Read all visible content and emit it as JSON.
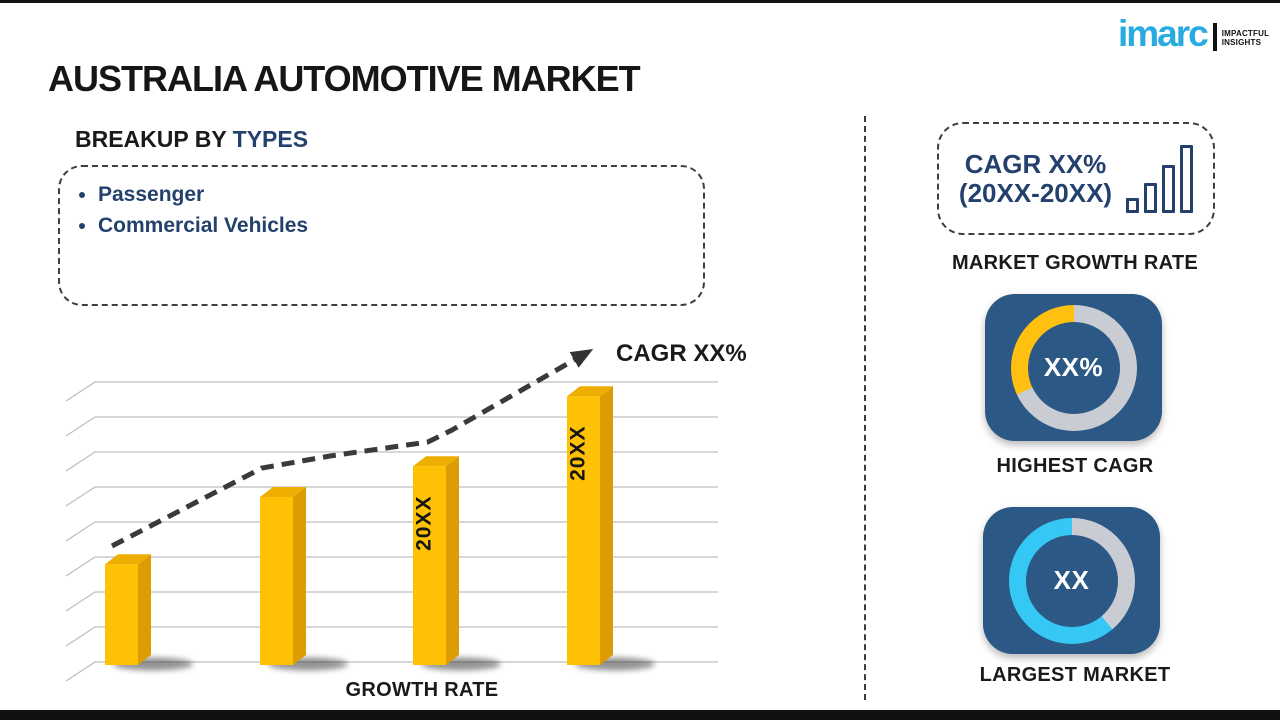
{
  "page": {
    "title": "AUSTRALIA AUTOMOTIVE MARKET"
  },
  "logo": {
    "brand": "imarc",
    "tagline_line1": "IMPACTFUL",
    "tagline_line2": "INSIGHTS",
    "brand_color": "#29ABE2"
  },
  "breakup": {
    "heading_prefix": "BREAKUP BY ",
    "heading_highlight": "TYPES",
    "items": [
      {
        "label": "Passenger"
      },
      {
        "label": "Commercial Vehicles"
      }
    ]
  },
  "growth_chart": {
    "trend_label": "CAGR XX%",
    "xlabel": "GROWTH RATE",
    "bar_color_front": "#FFC103",
    "bar_color_top": "#EFAF02",
    "bar_color_side": "#DD9D02",
    "trend_points": [
      [
        57,
        216
      ],
      [
        207,
        138
      ],
      [
        275,
        126
      ],
      [
        373,
        112
      ],
      [
        397,
        100
      ],
      [
        533,
        22
      ]
    ]
  },
  "sidebar": {
    "cagr_card": {
      "line1": "CAGR XX%",
      "line2": "(20XX-20XX)"
    },
    "market_growth_label": "MARKET GROWTH RATE",
    "highest_cagr": {
      "value": "XX%",
      "label": "HIGHEST CAGR",
      "segment_color": "#FFC010",
      "track_color": "#C9CDD3",
      "fraction": 0.32
    },
    "largest_market": {
      "value": "XX",
      "label": "LARGEST MARKET",
      "segment_color": "#35C8F4",
      "track_color": "#C9CDD3",
      "fraction": 0.61
    }
  },
  "chart_data": [
    {
      "type": "bar",
      "title": "Growth Rate (values masked in source as 20XX / XX%)",
      "categories": [
        "",
        "",
        "20XX",
        "20XX"
      ],
      "values": [
        36,
        60,
        71,
        96
      ],
      "xlabel": "GROWTH RATE",
      "ylabel": "",
      "ylim": [
        0,
        100
      ],
      "grid": true,
      "legend": false,
      "annotations": [
        "CAGR XX%"
      ],
      "style": "3d-gold-bars-with-dashed-trend-arrow"
    },
    {
      "type": "pie",
      "title": "HIGHEST CAGR",
      "labels": [
        "highlight",
        "remainder"
      ],
      "values": [
        32,
        68
      ],
      "center_text": "XX%",
      "colors": [
        "#FFC010",
        "#C9CDD3"
      ]
    },
    {
      "type": "pie",
      "title": "LARGEST MARKET",
      "labels": [
        "highlight",
        "remainder"
      ],
      "values": [
        61,
        39
      ],
      "center_text": "XX",
      "colors": [
        "#35C8F4",
        "#C9CDD3"
      ]
    }
  ]
}
